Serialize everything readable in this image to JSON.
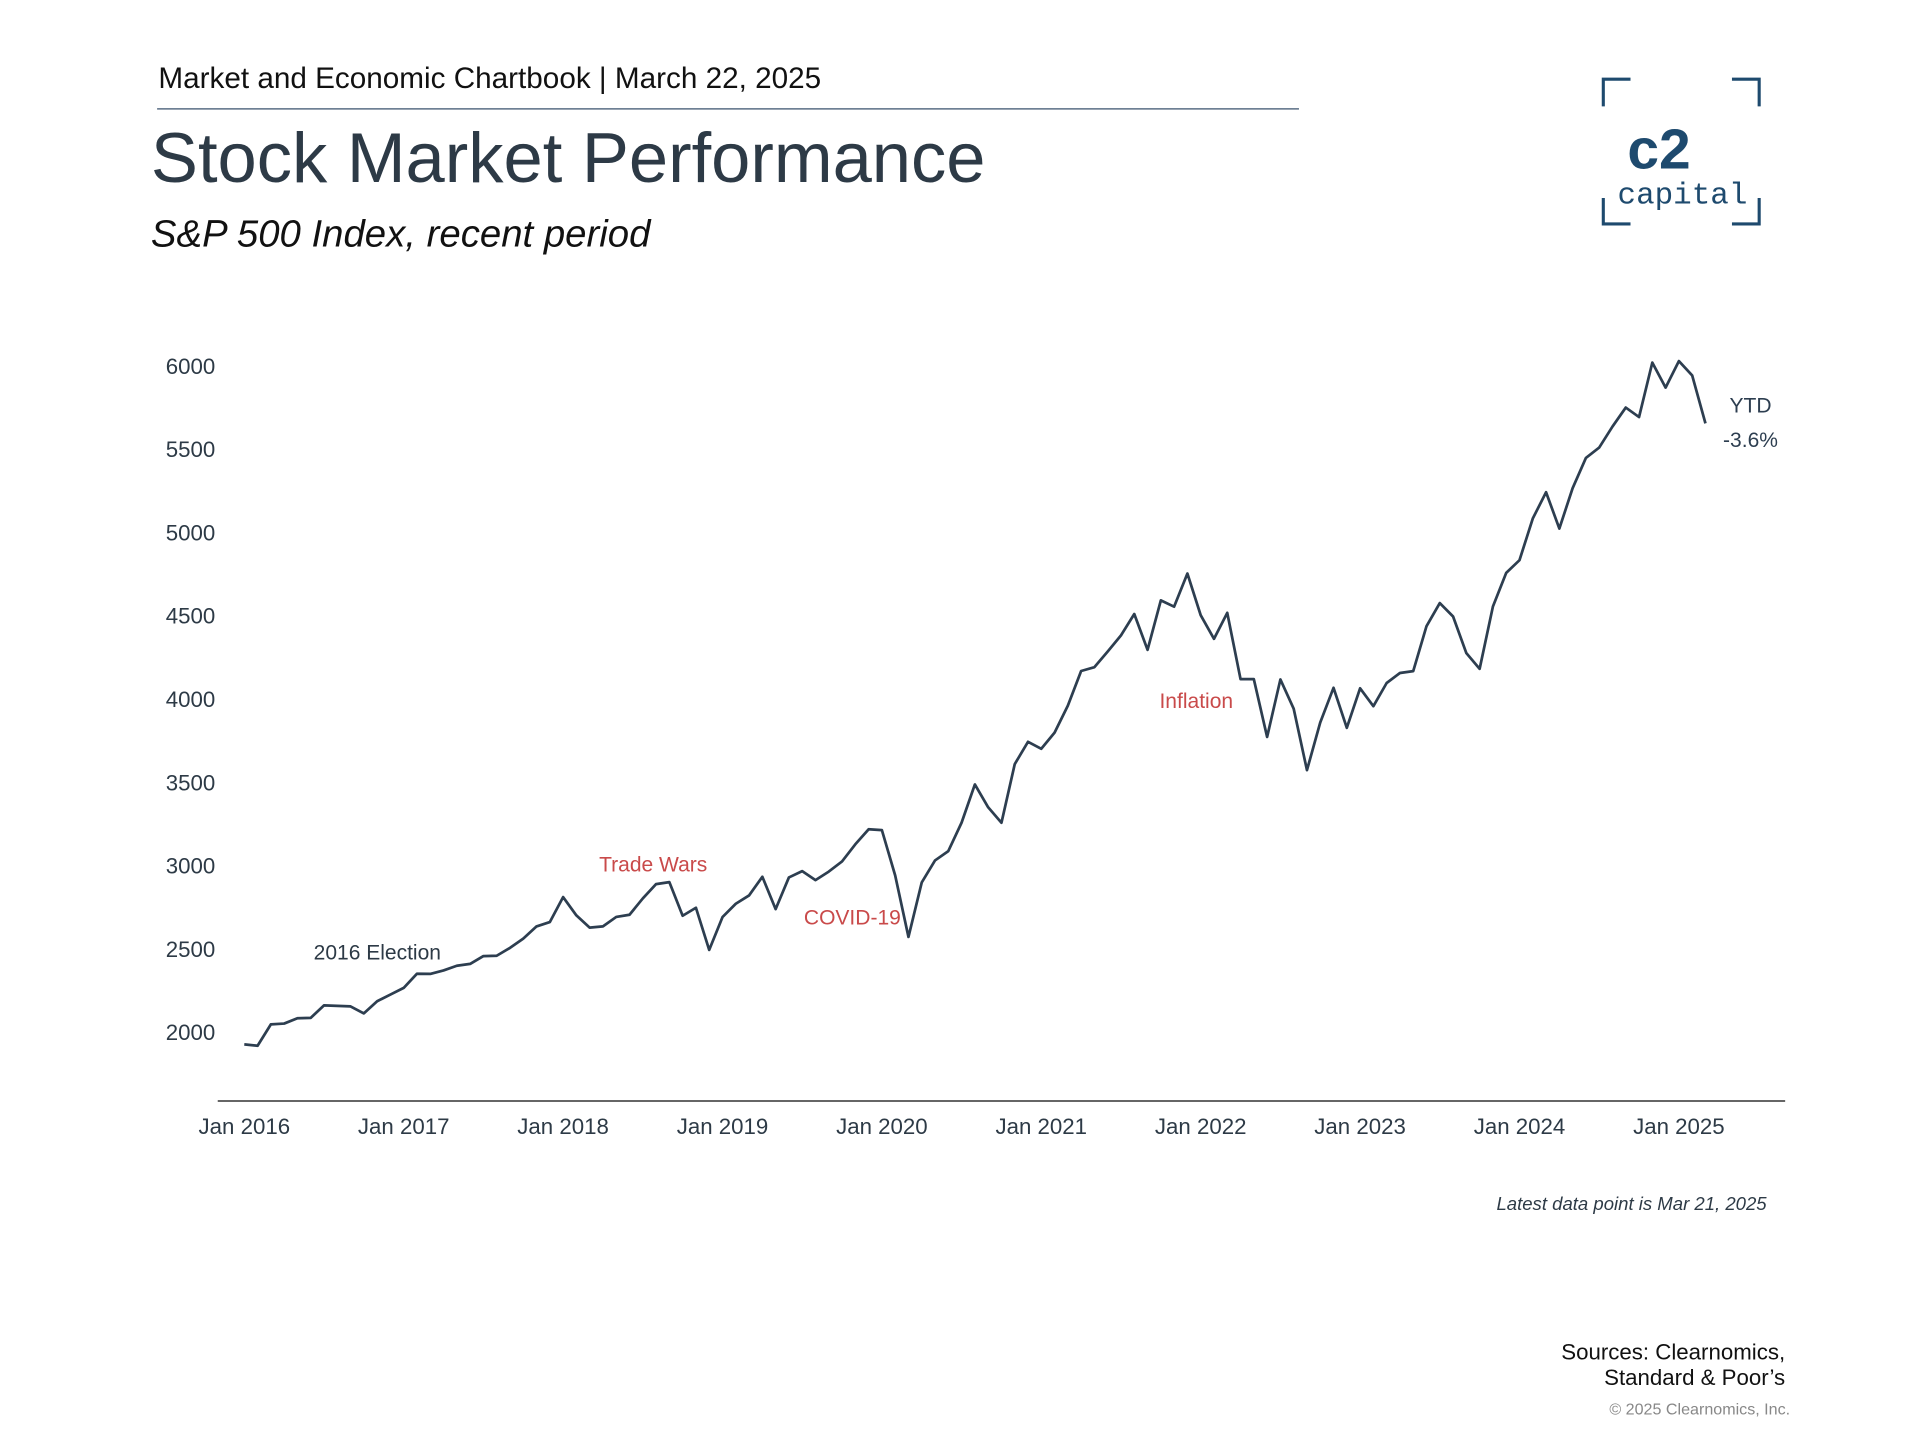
{
  "header": {
    "kicker": "Market and Economic Chartbook | March 22, 2025"
  },
  "logo": {
    "mark": "c2",
    "word": "capital"
  },
  "chart_data": {
    "type": "line",
    "title": "Stock Market Performance",
    "subtitle": "S&P 500 Index, recent period",
    "color": "#2d3e50",
    "x": [
      "2016-01",
      "2016-02",
      "2016-03",
      "2016-04",
      "2016-05",
      "2016-06",
      "2016-07",
      "2016-08",
      "2016-09",
      "2016-10",
      "2016-11",
      "2016-12",
      "2017-01",
      "2017-02",
      "2017-03",
      "2017-04",
      "2017-05",
      "2017-06",
      "2017-07",
      "2017-08",
      "2017-09",
      "2017-10",
      "2017-11",
      "2017-12",
      "2018-01",
      "2018-02",
      "2018-03",
      "2018-04",
      "2018-05",
      "2018-06",
      "2018-07",
      "2018-08",
      "2018-09",
      "2018-10",
      "2018-11",
      "2018-12",
      "2019-01",
      "2019-02",
      "2019-03",
      "2019-04",
      "2019-05",
      "2019-06",
      "2019-07",
      "2019-08",
      "2019-09",
      "2019-10",
      "2019-11",
      "2019-12",
      "2020-01",
      "2020-02",
      "2020-03",
      "2020-04",
      "2020-05",
      "2020-06",
      "2020-07",
      "2020-08",
      "2020-09",
      "2020-10",
      "2020-11",
      "2020-12",
      "2021-01",
      "2021-02",
      "2021-03",
      "2021-04",
      "2021-05",
      "2021-06",
      "2021-07",
      "2021-08",
      "2021-09",
      "2021-10",
      "2021-11",
      "2021-12",
      "2022-01",
      "2022-02",
      "2022-03",
      "2022-04",
      "2022-05",
      "2022-06",
      "2022-07",
      "2022-08",
      "2022-09",
      "2022-10",
      "2022-11",
      "2022-12",
      "2023-01",
      "2023-02",
      "2023-03",
      "2023-04",
      "2023-05",
      "2023-06",
      "2023-07",
      "2023-08",
      "2023-09",
      "2023-10",
      "2023-11",
      "2023-12",
      "2024-01",
      "2024-02",
      "2024-03",
      "2024-04",
      "2024-05",
      "2024-06",
      "2024-07",
      "2024-08",
      "2024-09",
      "2024-10",
      "2024-11",
      "2024-12",
      "2025-01",
      "2025-02",
      "2025-03"
    ],
    "values": [
      1940,
      1932,
      2060,
      2065,
      2097,
      2099,
      2174,
      2171,
      2168,
      2126,
      2199,
      2239,
      2279,
      2364,
      2363,
      2384,
      2412,
      2423,
      2470,
      2472,
      2519,
      2575,
      2648,
      2674,
      2824,
      2714,
      2641,
      2648,
      2705,
      2718,
      2816,
      2902,
      2914,
      2712,
      2760,
      2507,
      2704,
      2784,
      2834,
      2946,
      2752,
      2942,
      2980,
      2926,
      2977,
      3038,
      3141,
      3231,
      3226,
      2954,
      2585,
      2912,
      3044,
      3100,
      3271,
      3500,
      3363,
      3270,
      3622,
      3756,
      3714,
      3811,
      3973,
      4181,
      4204,
      4298,
      4395,
      4523,
      4308,
      4605,
      4567,
      4766,
      4516,
      4374,
      4530,
      4132,
      4132,
      3785,
      4130,
      3955,
      3586,
      3872,
      4080,
      3840,
      4077,
      3970,
      4109,
      4169,
      4180,
      4450,
      4589,
      4508,
      4288,
      4194,
      4568,
      4770,
      4846,
      5096,
      5254,
      5036,
      5278,
      5460,
      5522,
      5648,
      5762,
      5705,
      6032,
      5882,
      6041,
      5955,
      5667
    ],
    "xlim": [
      "2015-11",
      "2025-09"
    ],
    "xticks": [
      {
        "value": "2016-01",
        "label": "Jan 2016"
      },
      {
        "value": "2017-01",
        "label": "Jan 2017"
      },
      {
        "value": "2018-01",
        "label": "Jan 2018"
      },
      {
        "value": "2019-01",
        "label": "Jan 2019"
      },
      {
        "value": "2020-01",
        "label": "Jan 2020"
      },
      {
        "value": "2021-01",
        "label": "Jan 2021"
      },
      {
        "value": "2022-01",
        "label": "Jan 2022"
      },
      {
        "value": "2023-01",
        "label": "Jan 2023"
      },
      {
        "value": "2024-01",
        "label": "Jan 2024"
      },
      {
        "value": "2025-01",
        "label": "Jan 2025"
      }
    ],
    "ylim": [
      1600,
      6300
    ],
    "yticks": [
      2000,
      2500,
      3000,
      3500,
      4000,
      4500,
      5000,
      5500,
      6000
    ],
    "annotations": [
      {
        "text": "2016 Election",
        "color": "#2d3a46"
      },
      {
        "text": "Trade Wars",
        "color": "#c94a4a"
      },
      {
        "text": "COVID-19",
        "color": "#c94a4a"
      },
      {
        "text": "Inflation",
        "color": "#c94a4a"
      },
      {
        "text": "YTD",
        "color": "#2d3e50"
      },
      {
        "text": "-3.6%",
        "color": "#2d3e50"
      }
    ],
    "note": "Latest data point is Mar 21, 2025"
  },
  "footer": {
    "sources": [
      "Sources: Clearnomics,",
      "Standard & Poor’s"
    ],
    "copyright": "© 2025 Clearnomics, Inc."
  }
}
